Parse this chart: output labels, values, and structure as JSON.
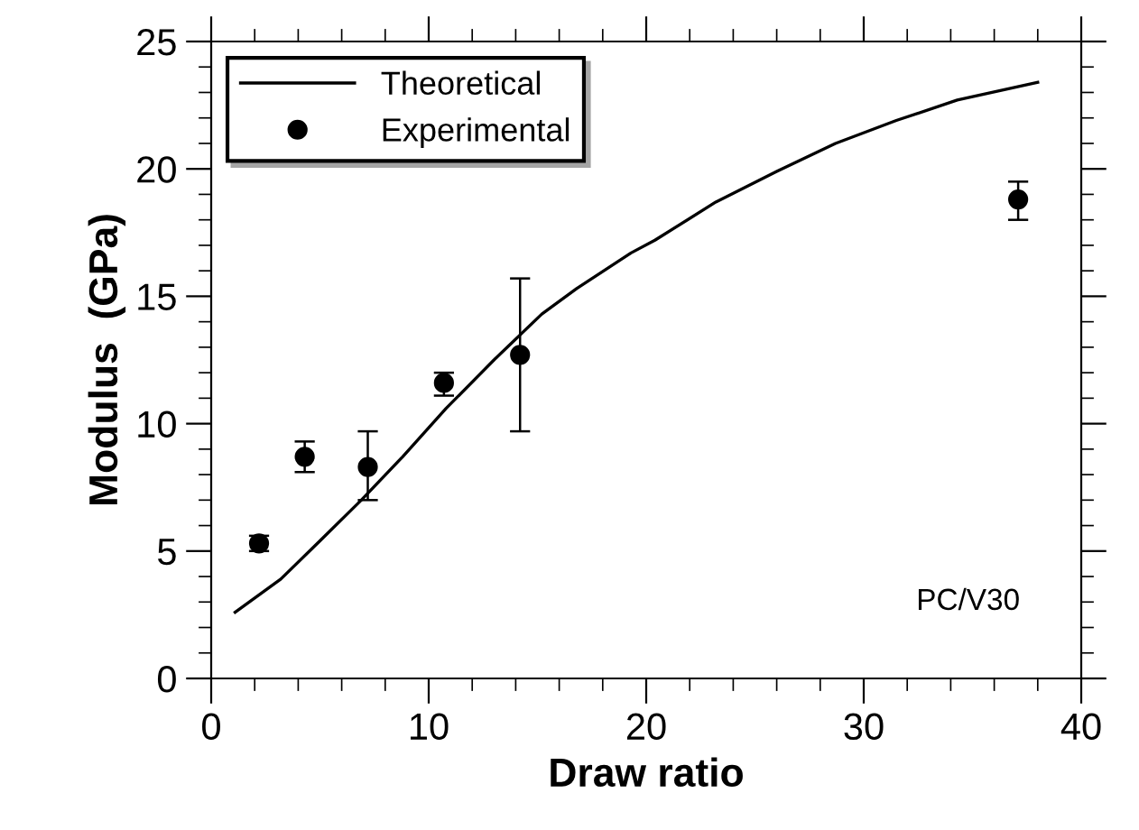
{
  "chart_data": {
    "type": "scatter",
    "xlabel": "Draw ratio",
    "ylabel": "Modulus  (GPa)",
    "xlim": [
      0,
      40
    ],
    "ylim": [
      0,
      25
    ],
    "xticks": [
      0,
      {
        "value": 2,
        "label": null
      },
      {
        "value": 4,
        "label": null
      },
      {
        "value": 6,
        "label": null
      },
      {
        "value": 8,
        "label": null
      },
      10,
      {
        "value": 12,
        "label": null
      },
      {
        "value": 14,
        "label": null
      },
      {
        "value": 16,
        "label": null
      },
      {
        "value": 18,
        "label": null
      },
      20,
      {
        "value": 22,
        "label": null
      },
      {
        "value": 24,
        "label": null
      },
      {
        "value": 26,
        "label": null
      },
      {
        "value": 28,
        "label": null
      },
      30,
      {
        "value": 32,
        "label": null
      },
      {
        "value": 34,
        "label": null
      },
      {
        "value": 36,
        "label": null
      },
      {
        "value": 38,
        "label": null
      },
      40
    ],
    "yticks": [
      0,
      {
        "value": 1,
        "label": null
      },
      {
        "value": 2,
        "label": null
      },
      {
        "value": 3,
        "label": null
      },
      {
        "value": 4,
        "label": null
      },
      5,
      {
        "value": 6,
        "label": null
      },
      {
        "value": 7,
        "label": null
      },
      {
        "value": 8,
        "label": null
      },
      {
        "value": 9,
        "label": null
      },
      10,
      {
        "value": 11,
        "label": null
      },
      {
        "value": 12,
        "label": null
      },
      {
        "value": 13,
        "label": null
      },
      {
        "value": 14,
        "label": null
      },
      15,
      {
        "value": 16,
        "label": null
      },
      {
        "value": 17,
        "label": null
      },
      {
        "value": 18,
        "label": null
      },
      {
        "value": 19,
        "label": null
      },
      20,
      {
        "value": 21,
        "label": null
      },
      {
        "value": 22,
        "label": null
      },
      {
        "value": 23,
        "label": null
      },
      {
        "value": 24,
        "label": null
      },
      25
    ],
    "grid": false,
    "legend": "top left",
    "annotations": [
      "PC/V30"
    ],
    "series": [
      {
        "name": "Theoretical",
        "type": "line",
        "color": "#000000",
        "marker": "none",
        "line_style": "solid",
        "x": [
          1.1,
          3.2,
          5.0,
          6.9,
          8.8,
          10.8,
          13.0,
          15.2,
          16.8,
          19.3,
          20.4,
          23.2,
          26.0,
          28.7,
          31.5,
          34.3,
          38.0
        ],
        "values": [
          2.6,
          3.9,
          5.4,
          7.0,
          8.7,
          10.6,
          12.5,
          14.3,
          15.3,
          16.7,
          17.2,
          18.7,
          19.9,
          21.0,
          21.9,
          22.7,
          23.4
        ]
      },
      {
        "name": "Experimental",
        "color": "#000000",
        "marker": "circle",
        "x": [
          2.2,
          4.3,
          7.2,
          10.7,
          14.2,
          37.1
        ],
        "values": [
          5.3,
          8.7,
          8.3,
          11.6,
          12.7,
          18.8
        ],
        "errors": [
          0.3,
          [
            8.1,
            9.3
          ],
          [
            7.0,
            9.7
          ],
          [
            11.1,
            12.0
          ],
          [
            9.7,
            15.7
          ],
          [
            18.0,
            19.5
          ]
        ]
      }
    ]
  }
}
